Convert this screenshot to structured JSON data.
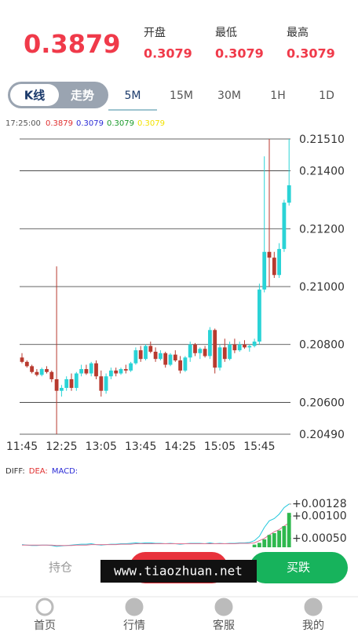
{
  "header": {
    "price": "0.3879",
    "stats": [
      {
        "label": "开盘",
        "value": "0.3079"
      },
      {
        "label": "最低",
        "value": "0.3079"
      },
      {
        "label": "最高",
        "value": "0.3079"
      }
    ]
  },
  "toggle": [
    "K线",
    "走势"
  ],
  "tabs": [
    "5M",
    "15M",
    "30M",
    "1H",
    "1D"
  ],
  "info": {
    "time": "17:25:00",
    "values": [
      "0.3879",
      "0.3079",
      "0.3079",
      "0.3079"
    ]
  },
  "chart_data": [
    {
      "type": "candlestick",
      "up_color": "#2ad3d6",
      "down_color": "#b83a2f",
      "categories": [
        "11:45",
        null,
        null,
        null,
        null,
        null,
        null,
        null,
        "12:25",
        null,
        null,
        null,
        null,
        null,
        null,
        null,
        "13:05",
        null,
        null,
        null,
        null,
        null,
        null,
        null,
        "13:45",
        null,
        null,
        null,
        null,
        null,
        null,
        null,
        "14:25",
        null,
        null,
        null,
        null,
        null,
        null,
        null,
        "15:05",
        null,
        null,
        null,
        null,
        null,
        null,
        null,
        "15:45",
        null,
        null,
        null,
        null,
        null,
        null
      ],
      "values": [
        [
          0.20755,
          0.2077,
          0.20735,
          0.2074
        ],
        [
          0.2074,
          0.20745,
          0.2072,
          0.20725
        ],
        [
          0.20725,
          0.2073,
          0.207,
          0.20705
        ],
        [
          0.20705,
          0.20715,
          0.2069,
          0.20695
        ],
        [
          0.20695,
          0.2072,
          0.2069,
          0.20715
        ],
        [
          0.20715,
          0.20725,
          0.207,
          0.20705
        ],
        [
          0.20705,
          0.2071,
          0.2067,
          0.2068
        ],
        [
          0.2068,
          0.2107,
          0.2049,
          0.2064
        ],
        [
          0.2064,
          0.2066,
          0.2062,
          0.2065
        ],
        [
          0.2065,
          0.2069,
          0.2064,
          0.2068
        ],
        [
          0.2068,
          0.207,
          0.2064,
          0.2065
        ],
        [
          0.2065,
          0.20705,
          0.2064,
          0.207
        ],
        [
          0.207,
          0.2073,
          0.2069,
          0.20715
        ],
        [
          0.20715,
          0.2073,
          0.20695,
          0.207
        ],
        [
          0.207,
          0.2074,
          0.2069,
          0.20735
        ],
        [
          0.20735,
          0.20745,
          0.2068,
          0.2069
        ],
        [
          0.2069,
          0.2071,
          0.2062,
          0.2064
        ],
        [
          0.2064,
          0.207,
          0.2063,
          0.2069
        ],
        [
          0.2069,
          0.2072,
          0.2068,
          0.2071
        ],
        [
          0.2071,
          0.2072,
          0.2069,
          0.207
        ],
        [
          0.207,
          0.2072,
          0.20695,
          0.20715
        ],
        [
          0.20715,
          0.2073,
          0.207,
          0.2071
        ],
        [
          0.2071,
          0.2074,
          0.20705,
          0.20735
        ],
        [
          0.20735,
          0.2079,
          0.2073,
          0.2078
        ],
        [
          0.2078,
          0.20795,
          0.2074,
          0.2075
        ],
        [
          0.2075,
          0.208,
          0.20745,
          0.20795
        ],
        [
          0.20795,
          0.2081,
          0.2077,
          0.20775
        ],
        [
          0.20775,
          0.2079,
          0.2074,
          0.2075
        ],
        [
          0.2075,
          0.2078,
          0.20745,
          0.2077
        ],
        [
          0.2077,
          0.20775,
          0.2072,
          0.2073
        ],
        [
          0.2073,
          0.2077,
          0.20725,
          0.20765
        ],
        [
          0.20765,
          0.2078,
          0.2074,
          0.20745
        ],
        [
          0.20745,
          0.2076,
          0.207,
          0.2071
        ],
        [
          0.2071,
          0.2076,
          0.20705,
          0.20755
        ],
        [
          0.20755,
          0.2081,
          0.2074,
          0.208
        ],
        [
          0.208,
          0.20805,
          0.2076,
          0.2077
        ],
        [
          0.2077,
          0.2079,
          0.2075,
          0.20785
        ],
        [
          0.20785,
          0.20795,
          0.20755,
          0.2076
        ],
        [
          0.2076,
          0.2086,
          0.2075,
          0.2085
        ],
        [
          0.2085,
          0.20855,
          0.207,
          0.2072
        ],
        [
          0.2072,
          0.208,
          0.2071,
          0.2079
        ],
        [
          0.2079,
          0.2082,
          0.2074,
          0.2075
        ],
        [
          0.2075,
          0.2081,
          0.20745,
          0.208
        ],
        [
          0.208,
          0.2082,
          0.2077,
          0.2078
        ],
        [
          0.2078,
          0.2081,
          0.20775,
          0.208
        ],
        [
          0.208,
          0.20815,
          0.20785,
          0.2079
        ],
        [
          0.2079,
          0.208,
          0.20775,
          0.20795
        ],
        [
          0.20795,
          0.2082,
          0.2079,
          0.2081
        ],
        [
          0.2081,
          0.2101,
          0.208,
          0.2099
        ],
        [
          0.2099,
          0.2145,
          0.2098,
          0.2112
        ],
        [
          0.2112,
          0.2151,
          0.21,
          0.211
        ],
        [
          0.211,
          0.2112,
          0.2103,
          0.2104
        ],
        [
          0.2104,
          0.2115,
          0.2103,
          0.2113
        ],
        [
          0.2113,
          0.213,
          0.2112,
          0.2129
        ],
        [
          0.2129,
          0.2151,
          0.2128,
          0.2135
        ]
      ],
      "ylim": [
        0.2049,
        0.2151
      ],
      "yticks": [
        {
          "value": 0.2151,
          "label": "0.21510"
        },
        {
          "value": 0.214,
          "label": "0.21400"
        },
        {
          "value": 0.212,
          "label": "0.21200"
        },
        {
          "value": 0.21,
          "label": "0.21000"
        },
        {
          "value": 0.208,
          "label": "0.20800"
        },
        {
          "value": 0.206,
          "label": "0.20600"
        },
        {
          "value": 0.2049,
          "label": "0.20490"
        }
      ],
      "grid": true
    },
    {
      "type": "macd",
      "bar_color": "#2eb84e",
      "series": [
        {
          "name": "DIFF:",
          "color": "#333333",
          "line_color": "#22c8dd",
          "values": [
            0.00036,
            0.00035,
            0.00034,
            0.00034,
            0.00035,
            0.00035,
            0.00034,
            0.00032,
            0.00033,
            0.00034,
            0.00035,
            0.00036,
            0.00037,
            0.00037,
            0.00038,
            0.00036,
            0.00035,
            0.00036,
            0.00037,
            0.00037,
            0.00038,
            0.00038,
            0.00039,
            0.0004,
            0.00039,
            0.0004,
            0.0004,
            0.00039,
            0.00039,
            0.00038,
            0.00039,
            0.00038,
            0.00037,
            0.00038,
            0.00039,
            0.00039,
            0.00039,
            0.00038,
            0.0004,
            0.00038,
            0.00039,
            0.00038,
            0.00039,
            0.00039,
            0.0004,
            0.0004,
            0.00041,
            0.00045,
            0.00055,
            0.00075,
            0.0009,
            0.00095,
            0.00105,
            0.0012,
            0.00128
          ]
        },
        {
          "name": "DEA:",
          "color": "#e03030",
          "line_color": "#e07090",
          "values": [
            0.00035,
            0.00035,
            0.00035,
            0.00035,
            0.00035,
            0.00035,
            0.00035,
            0.00034,
            0.00034,
            0.00034,
            0.00034,
            0.00035,
            0.00035,
            0.00035,
            0.00036,
            0.00036,
            0.00036,
            0.00036,
            0.00036,
            0.00036,
            0.00037,
            0.00037,
            0.00037,
            0.00038,
            0.00038,
            0.00038,
            0.00038,
            0.00038,
            0.00038,
            0.00038,
            0.00038,
            0.00038,
            0.00038,
            0.00038,
            0.00038,
            0.00038,
            0.00038,
            0.00038,
            0.00038,
            0.00038,
            0.00038,
            0.00038,
            0.00038,
            0.00038,
            0.00039,
            0.00039,
            0.00039,
            0.0004,
            0.00045,
            0.0005,
            0.00058,
            0.00065,
            0.0007,
            0.00078,
            0.00085
          ]
        },
        {
          "name": "MACD:",
          "color": "#2b2bd6",
          "values": [
            null,
            null,
            null,
            null,
            null,
            null,
            null,
            null,
            null,
            null,
            null,
            null,
            null,
            null,
            null,
            null,
            null,
            null,
            null,
            null,
            null,
            null,
            null,
            null,
            null,
            null,
            null,
            null,
            null,
            null,
            null,
            null,
            null,
            null,
            null,
            null,
            null,
            null,
            null,
            null,
            null,
            null,
            null,
            null,
            null,
            null,
            null,
            0.00036,
            0.0004,
            0.00048,
            0.00058,
            0.00062,
            0.00068,
            0.00078,
            0.00108
          ]
        }
      ],
      "ylim": [
        0.0003,
        0.00135
      ],
      "yticks": [
        {
          "value": 0.00128,
          "label": "+0.00128"
        },
        {
          "value": 0.001,
          "label": "+0.00100"
        },
        {
          "value": 0.0005,
          "label": "+0.00050"
        }
      ]
    }
  ],
  "actions": [
    "持仓",
    "买跌"
  ],
  "watermark": "www.tiaozhuan.net",
  "nav": [
    "首页",
    "行情",
    "客服",
    "我的"
  ]
}
